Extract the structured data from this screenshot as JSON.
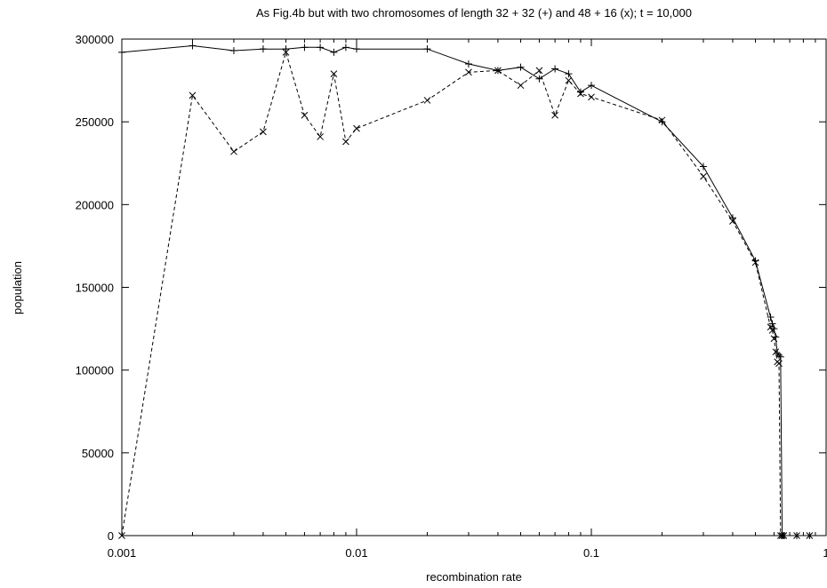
{
  "chart_data": {
    "type": "line",
    "title": "As Fig.4b but with two chromosomes of length 32 + 32 (+) and 48 + 16 (x); t = 10,000",
    "xlabel": "recombination rate",
    "ylabel": "population",
    "xscale": "log",
    "xlim": [
      0.001,
      1
    ],
    "ylim": [
      0,
      300000
    ],
    "xticks": [
      0.001,
      0.01,
      0.1,
      1
    ],
    "xtick_labels": [
      "0.001",
      "0.01",
      "0.1",
      "1"
    ],
    "yticks": [
      0,
      50000,
      100000,
      150000,
      200000,
      250000,
      300000
    ],
    "ytick_labels": [
      "0",
      "50000",
      "100000",
      "150000",
      "200000",
      "250000",
      "300000"
    ],
    "grid": false,
    "legend": "none",
    "series": [
      {
        "marker": "plus",
        "line_style": "solid",
        "x": [
          0.001,
          0.002,
          0.003,
          0.004,
          0.005,
          0.006,
          0.007,
          0.008,
          0.009,
          0.01,
          0.02,
          0.03,
          0.04,
          0.05,
          0.06,
          0.07,
          0.08,
          0.09,
          0.1,
          0.2,
          0.3,
          0.4,
          0.5,
          0.58,
          0.59,
          0.6,
          0.61,
          0.62,
          0.63,
          0.64,
          0.65,
          0.66,
          0.75,
          0.85
        ],
        "values": [
          292000,
          296000,
          293000,
          294000,
          294000,
          295000,
          295000,
          292000,
          295000,
          294000,
          294000,
          285000,
          281000,
          283000,
          276000,
          282000,
          279000,
          268000,
          272000,
          250000,
          223000,
          192000,
          166000,
          132000,
          128000,
          125000,
          120000,
          110000,
          109000,
          108000,
          0,
          0,
          0,
          0
        ]
      },
      {
        "marker": "cross",
        "line_style": "dashed",
        "x": [
          0.001,
          0.002,
          0.003,
          0.004,
          0.005,
          0.006,
          0.007,
          0.008,
          0.009,
          0.01,
          0.02,
          0.03,
          0.04,
          0.05,
          0.06,
          0.07,
          0.08,
          0.09,
          0.1,
          0.2,
          0.3,
          0.4,
          0.5,
          0.58,
          0.59,
          0.6,
          0.61,
          0.62,
          0.63,
          0.64,
          0.65,
          0.66,
          0.75,
          0.85
        ],
        "values": [
          0,
          266000,
          232000,
          244000,
          292000,
          254000,
          241000,
          279000,
          238000,
          246000,
          263000,
          280000,
          281000,
          272000,
          281000,
          254000,
          275000,
          267000,
          265000,
          251000,
          217000,
          190000,
          165000,
          126000,
          124000,
          119000,
          111000,
          105000,
          104000,
          0,
          0,
          0,
          0,
          0
        ]
      }
    ]
  }
}
